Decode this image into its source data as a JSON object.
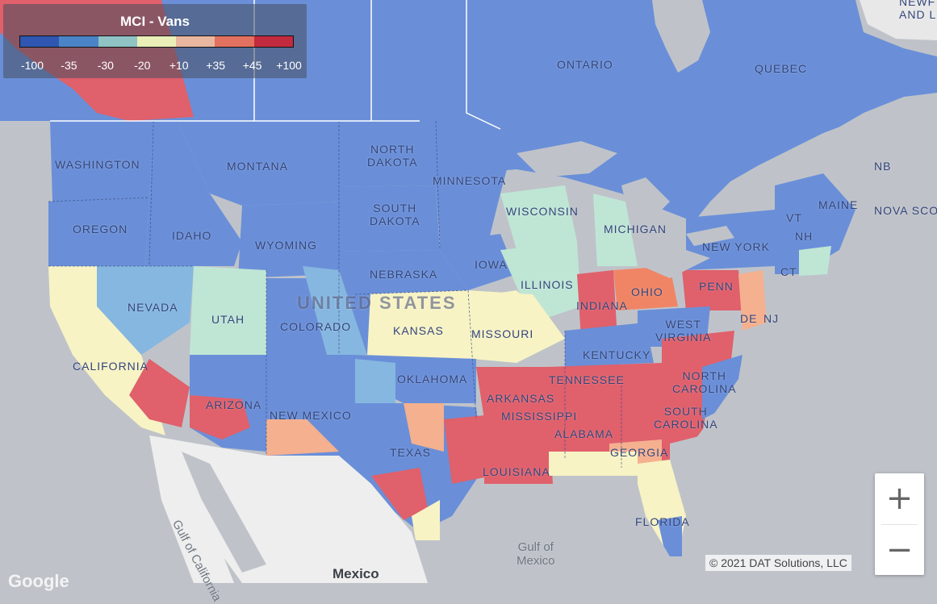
{
  "legend": {
    "title": "MCI - Vans",
    "ticks": [
      "-100",
      "-35",
      "-30",
      "-20",
      "+10",
      "+35",
      "+45",
      "+100"
    ],
    "colors": [
      "#2f56b0",
      "#4a84c7",
      "#8fc3c4",
      "#eaefb8",
      "#e9b7a0",
      "#e3715f",
      "#c22a3f"
    ]
  },
  "palette": {
    "blue": "#6a8fd8",
    "lightblue": "#86b7e0",
    "mint": "#bfe6d5",
    "yellow": "#f7f3c4",
    "peach": "#f4b08f",
    "orange": "#f08566",
    "red": "#e0606b",
    "land_gray": "#c8c8c8",
    "mexico_land": "#eeeeee",
    "water": "#bfc3c9"
  },
  "labels": {
    "ontario": "ONTARIO",
    "quebec": "QUEBEC",
    "nb": "NB",
    "nova_scotia": "NOVA SCO",
    "washington": "WASHINGTON",
    "oregon": "OREGON",
    "idaho": "IDAHO",
    "montana": "MONTANA",
    "north_dakota": "NORTH\nDAKOTA",
    "south_dakota": "SOUTH\nDAKOTA",
    "minnesota": "MINNESOTA",
    "wisconsin": "WISCONSIN",
    "michigan": "MICHIGAN",
    "new_york": "NEW YORK",
    "maine": "MAINE",
    "vt": "VT",
    "nh": "NH",
    "ct": "CT",
    "wyoming": "WYOMING",
    "nebraska": "NEBRASKA",
    "iowa": "IOWA",
    "illinois": "ILLINOIS",
    "indiana": "INDIANA",
    "ohio": "OHIO",
    "penn": "PENN",
    "nevada": "NEVADA",
    "utah": "UTAH",
    "colorado": "COLORADO",
    "kansas": "KANSAS",
    "missouri": "MISSOURI",
    "west_virginia": "WEST\nVIRGINIA",
    "de": "DE",
    "nj": "NJ",
    "kentucky": "KENTUCKY",
    "california": "CALIFORNIA",
    "arizona": "ARIZONA",
    "new_mexico": "NEW MEXICO",
    "oklahoma": "OKLAHOMA",
    "arkansas": "ARKANSAS",
    "tennessee": "TENNESSEE",
    "north_carolina": "NORTH\nCAROLINA",
    "south_carolina": "SOUTH\nCAROLINA",
    "mississippi": "MISSISSIPPI",
    "alabama": "ALABAMA",
    "georgia": "GEORGIA",
    "texas": "TEXAS",
    "louisiana": "LOUISIANA",
    "florida": "FLORIDA",
    "united_states": "United States",
    "gulf_of_mexico": "Gulf of\nMexico",
    "gulf_of_california": "Gulf of California",
    "mexico": "Mexico",
    "newfoundland": "NEWF\nAND L"
  },
  "zoom": {
    "in": "+",
    "out": "−"
  },
  "copyright": "© 2021 DAT Solutions, LLC",
  "google": "Google"
}
